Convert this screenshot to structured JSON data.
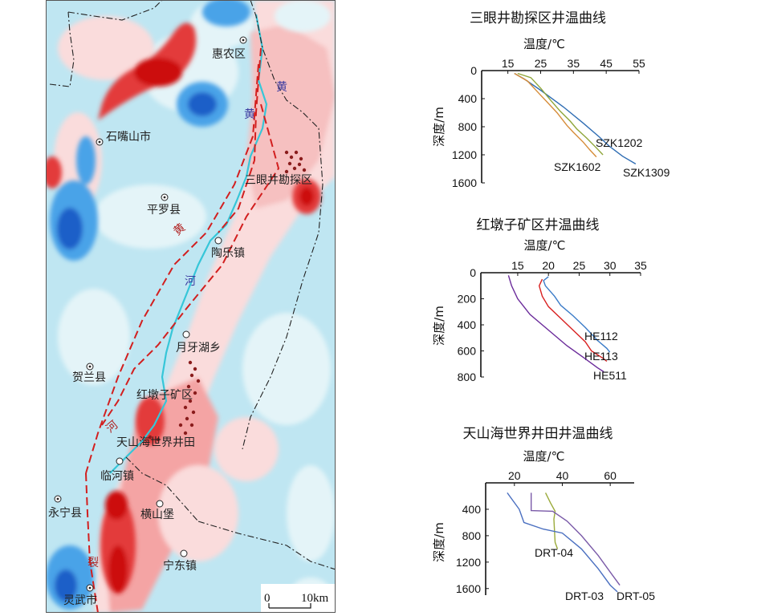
{
  "map": {
    "places": [
      {
        "name": "惠农区"
      },
      {
        "name": "石嘴山市"
      },
      {
        "name": "三眼井勘探区"
      },
      {
        "name": "平罗县"
      },
      {
        "name": "陶乐镇"
      },
      {
        "name": "月牙湖乡"
      },
      {
        "name": "贺兰县"
      },
      {
        "name": "红墩子矿区"
      },
      {
        "name": "天山海世界井田"
      },
      {
        "name": "临河镇"
      },
      {
        "name": "永宁县"
      },
      {
        "name": "横山堡"
      },
      {
        "name": "宁东镇"
      },
      {
        "name": "灵武市"
      }
    ],
    "river_labels": [
      "黄",
      "黄",
      "河"
    ],
    "fault_labels": [
      "黄",
      "河",
      "裂"
    ],
    "scale": {
      "zero": "0",
      "distance": "10km"
    },
    "colors": {
      "deep_blue": "#1f5fc8",
      "mid_blue": "#4aa3e8",
      "light_blue": "#bfe6f2",
      "pale_blue": "#e4f4f8",
      "pale_pink": "#fadcdc",
      "pink": "#f4a4a4",
      "red": "#e33a3a",
      "deep_red": "#cc0b0b",
      "river": "#36c6d8",
      "fault": "#d21f1f",
      "boundary": "#222222",
      "well_dots": "#8a1c1c"
    }
  },
  "chart_data": [
    {
      "type": "line",
      "title": "三眼井勘探区井温曲线",
      "xlabel": "温度/℃",
      "ylabel": "深度/m",
      "x_ticks": [
        15,
        25,
        35,
        45,
        55
      ],
      "y_ticks": [
        0,
        400,
        800,
        1200,
        1600
      ],
      "xlim": [
        7,
        55
      ],
      "ylim": [
        0,
        1600
      ],
      "y_inverted": true,
      "x_axis_position": "top",
      "series": [
        {
          "name": "SZK1202",
          "color": "#2f6db3",
          "points": [
            [
              17,
              40
            ],
            [
              20,
              120
            ],
            [
              25,
              280
            ],
            [
              32,
              520
            ],
            [
              38,
              750
            ],
            [
              43,
              950
            ],
            [
              46,
              1080
            ],
            [
              50,
              1220
            ],
            [
              54,
              1330
            ]
          ]
        },
        {
          "name": "SZK1602",
          "color": "#d68c38",
          "points": [
            [
              17,
              40
            ],
            [
              21,
              150
            ],
            [
              24,
              300
            ],
            [
              27,
              450
            ],
            [
              30,
              600
            ],
            [
              33,
              780
            ],
            [
              35,
              880
            ],
            [
              38,
              1020
            ],
            [
              40,
              1130
            ],
            [
              42,
              1230
            ]
          ]
        },
        {
          "name": "SZK1309",
          "color": "#8fa63a",
          "points": [
            [
              18,
              40
            ],
            [
              22,
              100
            ],
            [
              25,
              250
            ],
            [
              28,
              420
            ],
            [
              31,
              580
            ],
            [
              34,
              720
            ],
            [
              36,
              830
            ],
            [
              39,
              960
            ],
            [
              42,
              1100
            ],
            [
              44,
              1200
            ]
          ]
        }
      ]
    },
    {
      "type": "line",
      "title": "红墩子矿区井温曲线",
      "xlabel": "温度/℃",
      "ylabel": "深度/m",
      "x_ticks": [
        15,
        20,
        25,
        30,
        35
      ],
      "y_ticks": [
        0,
        200,
        400,
        600,
        800
      ],
      "xlim": [
        9,
        35
      ],
      "ylim": [
        0,
        800
      ],
      "y_inverted": true,
      "x_axis_position": "top",
      "series": [
        {
          "name": "HE112",
          "color": "#3a7bc8",
          "points": [
            [
              20,
              30
            ],
            [
              19.2,
              60
            ],
            [
              19.5,
              100
            ],
            [
              21,
              180
            ],
            [
              22,
              250
            ],
            [
              24,
              330
            ],
            [
              26,
              420
            ],
            [
              28,
              520
            ],
            [
              29.5,
              580
            ],
            [
              30,
              610
            ]
          ]
        },
        {
          "name": "HE113",
          "color": "#d82020",
          "points": [
            [
              19,
              50
            ],
            [
              18.5,
              100
            ],
            [
              19,
              180
            ],
            [
              20,
              260
            ],
            [
              22,
              350
            ],
            [
              24,
              440
            ],
            [
              26,
              530
            ],
            [
              27,
              600
            ],
            [
              29,
              660
            ],
            [
              29.5,
              680
            ]
          ]
        },
        {
          "name": "HE511",
          "color": "#6a2a9a",
          "points": [
            [
              13.5,
              20
            ],
            [
              14,
              100
            ],
            [
              15,
              200
            ],
            [
              17,
              320
            ],
            [
              20,
              440
            ],
            [
              23,
              560
            ],
            [
              26,
              660
            ],
            [
              28,
              730
            ],
            [
              29,
              760
            ]
          ]
        }
      ]
    },
    {
      "type": "line",
      "title": "天山海世界井田井温曲线",
      "xlabel": "温度/℃",
      "ylabel": "深度/m",
      "x_ticks": [
        20,
        40,
        60
      ],
      "y_ticks": [
        400,
        800,
        1200,
        1600
      ],
      "xlim": [
        8,
        70
      ],
      "ylim": [
        0,
        1700
      ],
      "y_inverted": true,
      "x_axis_position": "top",
      "series": [
        {
          "name": "DRT-04",
          "color": "#9aaa3a",
          "points": [
            [
              33,
              150
            ],
            [
              35,
              300
            ],
            [
              37,
              430
            ],
            [
              36.5,
              550
            ],
            [
              37,
              900
            ],
            [
              38,
              1000
            ]
          ]
        },
        {
          "name": "DRT-03",
          "color": "#4a6fc0",
          "points": [
            [
              17,
              150
            ],
            [
              22,
              400
            ],
            [
              24,
              600
            ],
            [
              32,
              700
            ],
            [
              40,
              760
            ],
            [
              48,
              1000
            ],
            [
              55,
              1300
            ],
            [
              60,
              1550
            ],
            [
              63,
              1650
            ]
          ]
        },
        {
          "name": "DRT-05",
          "color": "#7a5aa8",
          "points": [
            [
              27,
              150
            ],
            [
              27,
              420
            ],
            [
              36,
              430
            ],
            [
              42,
              580
            ],
            [
              48,
              800
            ],
            [
              55,
              1100
            ],
            [
              61,
              1400
            ],
            [
              64,
              1550
            ]
          ]
        }
      ]
    }
  ]
}
